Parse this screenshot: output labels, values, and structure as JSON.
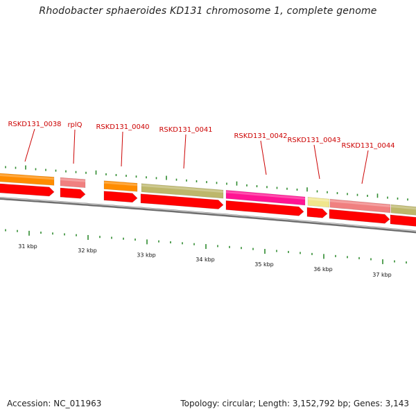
{
  "title": "Rhodobacter sphaeroides KD131 chromosome 1, complete genome",
  "footer": {
    "accession": "Accession: NC_011963",
    "topology": "Topology: circular; Length: 3,152,792 bp; Genes: 3,143"
  },
  "colors": {
    "backbone": "#8a8a8a",
    "tick": "#2e8b2e",
    "label": "#cc0000",
    "cds": "#ff0000",
    "orange": "#ff8c00",
    "salmon": "#f08080",
    "olive": "#bdb76b",
    "magenta": "#ff1493",
    "khaki": "#f0e68c"
  },
  "gene_labels": [
    {
      "text": "RSKD131_0038"
    },
    {
      "text": "rplQ"
    },
    {
      "text": "RSKD131_0040"
    },
    {
      "text": "RSKD131_0041"
    },
    {
      "text": "RSKD131_0042"
    },
    {
      "text": "RSKD131_0043"
    },
    {
      "text": "RSKD131_0044"
    }
  ],
  "kbp_labels": [
    "31 kbp",
    "32 kbp",
    "33 kbp",
    "34 kbp",
    "35 kbp",
    "36 kbp",
    "37 kbp"
  ]
}
